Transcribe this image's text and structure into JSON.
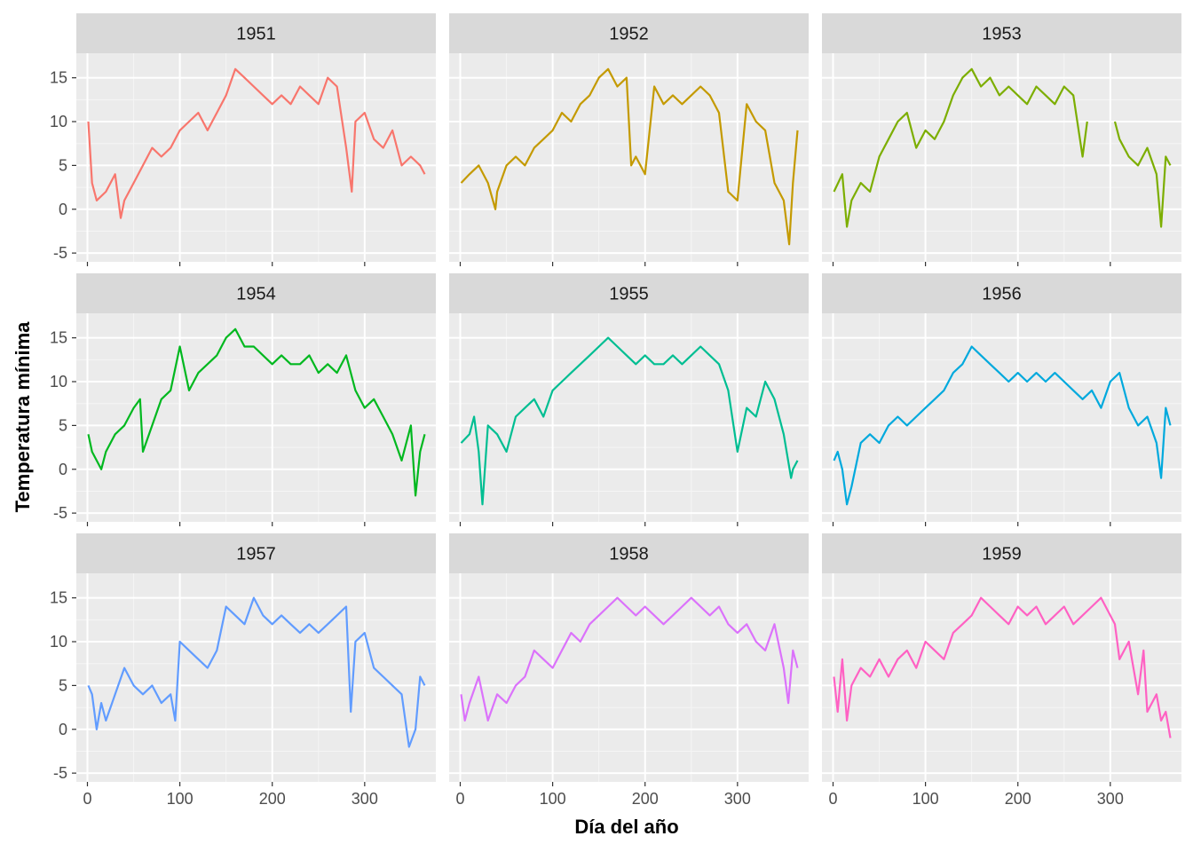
{
  "chart_data": {
    "type": "line",
    "layout": "facet-wrap 3x3",
    "xlabel": "Día del año",
    "ylabel": "Temperatura mínima",
    "xlim": [
      -12,
      377
    ],
    "ylim": [
      -6,
      17.8
    ],
    "x_ticks": [
      0,
      100,
      200,
      300
    ],
    "y_ticks": [
      -5,
      0,
      5,
      10,
      15
    ],
    "x_tick_labels": [
      "0",
      "100",
      "200",
      "300"
    ],
    "y_tick_labels": [
      "-5",
      "0",
      "5",
      "10",
      "15"
    ],
    "grid": true,
    "legend": "none",
    "panel_background": "#ebebeb",
    "strip_background": "#d9d9d9",
    "panels": [
      {
        "strip": "1951",
        "color": "#F8766D",
        "x": [
          1,
          5,
          10,
          20,
          30,
          36,
          40,
          50,
          60,
          70,
          80,
          90,
          100,
          110,
          120,
          130,
          140,
          150,
          160,
          170,
          180,
          190,
          200,
          210,
          220,
          230,
          240,
          250,
          260,
          270,
          280,
          286,
          290,
          300,
          310,
          320,
          330,
          340,
          350,
          360,
          365
        ],
        "y": [
          10,
          3,
          1,
          2,
          4,
          -1,
          1,
          3,
          5,
          7,
          6,
          7,
          9,
          10,
          11,
          9,
          11,
          13,
          16,
          15,
          14,
          13,
          12,
          13,
          12,
          14,
          13,
          12,
          15,
          14,
          7,
          2,
          10,
          11,
          8,
          7,
          9,
          5,
          6,
          5,
          4
        ]
      },
      {
        "strip": "1952",
        "color": "#C49A00",
        "x": [
          1,
          10,
          20,
          30,
          38,
          40,
          50,
          60,
          70,
          80,
          90,
          100,
          110,
          120,
          130,
          140,
          150,
          160,
          170,
          180,
          185,
          190,
          200,
          210,
          220,
          230,
          240,
          250,
          260,
          270,
          280,
          290,
          300,
          310,
          320,
          330,
          340,
          350,
          356,
          360,
          365
        ],
        "y": [
          3,
          4,
          5,
          3,
          0,
          2,
          5,
          6,
          5,
          7,
          8,
          9,
          11,
          10,
          12,
          13,
          15,
          16,
          14,
          15,
          5,
          6,
          4,
          14,
          12,
          13,
          12,
          13,
          14,
          13,
          11,
          2,
          1,
          12,
          10,
          9,
          3,
          1,
          -4,
          3,
          9
        ]
      },
      {
        "strip": "1953",
        "color": "#7CAE00",
        "x": [
          1,
          10,
          15,
          20,
          30,
          40,
          50,
          60,
          70,
          80,
          90,
          100,
          110,
          120,
          130,
          140,
          150,
          160,
          170,
          180,
          190,
          200,
          210,
          220,
          230,
          240,
          250,
          260,
          270,
          275,
          300,
          305,
          310,
          320,
          330,
          340,
          350,
          355,
          360,
          365
        ],
        "y": [
          2,
          4,
          -2,
          1,
          3,
          2,
          6,
          8,
          10,
          11,
          7,
          9,
          8,
          10,
          13,
          15,
          16,
          14,
          15,
          13,
          14,
          13,
          12,
          14,
          13,
          12,
          14,
          13,
          6,
          10,
          null,
          10,
          8,
          6,
          5,
          7,
          4,
          -2,
          6,
          5
        ]
      },
      {
        "strip": "1954",
        "color": "#00B81F",
        "x": [
          1,
          5,
          10,
          15,
          20,
          30,
          40,
          50,
          57,
          60,
          70,
          80,
          90,
          100,
          110,
          120,
          130,
          140,
          150,
          160,
          170,
          180,
          190,
          200,
          210,
          220,
          230,
          240,
          250,
          260,
          270,
          280,
          290,
          300,
          310,
          320,
          330,
          340,
          350,
          355,
          360,
          365
        ],
        "y": [
          4,
          2,
          1,
          0,
          2,
          4,
          5,
          7,
          8,
          2,
          5,
          8,
          9,
          14,
          9,
          11,
          12,
          13,
          15,
          16,
          14,
          14,
          13,
          12,
          13,
          12,
          12,
          13,
          11,
          12,
          11,
          13,
          9,
          7,
          8,
          6,
          4,
          1,
          5,
          -3,
          2,
          4
        ]
      },
      {
        "strip": "1955",
        "color": "#00BE92",
        "x": [
          1,
          10,
          15,
          20,
          24,
          30,
          40,
          50,
          60,
          70,
          80,
          90,
          100,
          110,
          120,
          130,
          140,
          150,
          160,
          170,
          180,
          190,
          200,
          210,
          220,
          230,
          240,
          250,
          260,
          270,
          280,
          290,
          300,
          310,
          320,
          330,
          340,
          350,
          358,
          360,
          365
        ],
        "y": [
          3,
          4,
          6,
          2,
          -4,
          5,
          4,
          2,
          6,
          7,
          8,
          6,
          9,
          10,
          11,
          12,
          13,
          14,
          15,
          14,
          13,
          12,
          13,
          12,
          12,
          13,
          12,
          13,
          14,
          13,
          12,
          9,
          2,
          7,
          6,
          10,
          8,
          4,
          -1,
          0,
          1
        ]
      },
      {
        "strip": "1956",
        "color": "#00A9DD",
        "x": [
          1,
          5,
          10,
          15,
          20,
          30,
          40,
          50,
          60,
          70,
          80,
          90,
          100,
          110,
          120,
          130,
          140,
          150,
          160,
          170,
          180,
          190,
          200,
          210,
          220,
          230,
          240,
          250,
          260,
          270,
          280,
          290,
          300,
          310,
          320,
          330,
          340,
          350,
          355,
          360,
          365
        ],
        "y": [
          1,
          2,
          0,
          -4,
          -2,
          3,
          4,
          3,
          5,
          6,
          5,
          6,
          7,
          8,
          9,
          11,
          12,
          14,
          13,
          12,
          11,
          10,
          11,
          10,
          11,
          10,
          11,
          10,
          9,
          8,
          9,
          7,
          10,
          11,
          7,
          5,
          6,
          3,
          -1,
          7,
          5
        ]
      },
      {
        "strip": "1957",
        "color": "#619CFF",
        "x": [
          1,
          5,
          10,
          15,
          20,
          30,
          40,
          50,
          60,
          70,
          80,
          90,
          95,
          100,
          110,
          120,
          130,
          140,
          150,
          160,
          170,
          180,
          190,
          200,
          210,
          220,
          230,
          240,
          250,
          260,
          270,
          280,
          285,
          290,
          300,
          310,
          320,
          330,
          340,
          348,
          355,
          360,
          365
        ],
        "y": [
          5,
          4,
          0,
          3,
          1,
          4,
          7,
          5,
          4,
          5,
          3,
          4,
          1,
          10,
          9,
          8,
          7,
          9,
          14,
          13,
          12,
          15,
          13,
          12,
          13,
          12,
          11,
          12,
          11,
          12,
          13,
          14,
          2,
          10,
          11,
          7,
          6,
          5,
          4,
          -2,
          0,
          6,
          5
        ]
      },
      {
        "strip": "1958",
        "color": "#DB72FB",
        "x": [
          1,
          5,
          10,
          20,
          30,
          40,
          50,
          60,
          70,
          80,
          90,
          100,
          110,
          120,
          130,
          140,
          150,
          160,
          170,
          180,
          190,
          200,
          210,
          220,
          230,
          240,
          250,
          260,
          270,
          280,
          290,
          300,
          310,
          320,
          330,
          340,
          350,
          355,
          360,
          365
        ],
        "y": [
          4,
          1,
          3,
          6,
          1,
          4,
          3,
          5,
          6,
          9,
          8,
          7,
          9,
          11,
          10,
          12,
          13,
          14,
          15,
          14,
          13,
          14,
          13,
          12,
          13,
          14,
          15,
          14,
          13,
          14,
          12,
          11,
          12,
          10,
          9,
          12,
          7,
          3,
          9,
          7
        ]
      },
      {
        "strip": "1959",
        "color": "#FF61C3",
        "x": [
          1,
          5,
          10,
          15,
          20,
          30,
          40,
          50,
          60,
          70,
          80,
          90,
          100,
          110,
          120,
          130,
          140,
          150,
          160,
          170,
          180,
          190,
          200,
          210,
          220,
          230,
          240,
          250,
          260,
          270,
          280,
          290,
          300,
          305,
          310,
          320,
          330,
          336,
          340,
          350,
          355,
          360,
          365
        ],
        "y": [
          6,
          2,
          8,
          1,
          5,
          7,
          6,
          8,
          6,
          8,
          9,
          7,
          10,
          9,
          8,
          11,
          12,
          13,
          15,
          14,
          13,
          12,
          14,
          13,
          14,
          12,
          13,
          14,
          12,
          13,
          14,
          15,
          13,
          12,
          8,
          10,
          4,
          9,
          2,
          4,
          1,
          2,
          -1
        ]
      }
    ]
  }
}
